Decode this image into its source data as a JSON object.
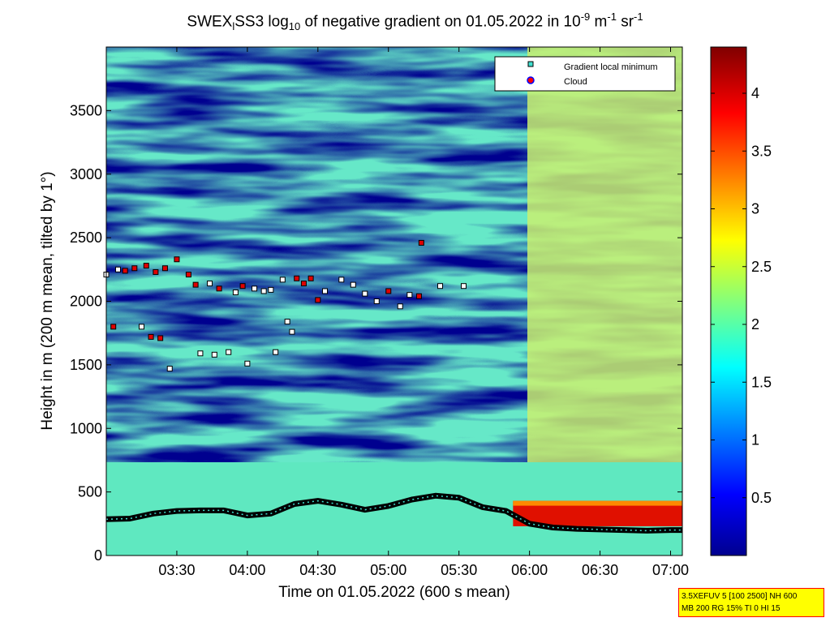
{
  "title": {
    "text_a": "SWEX",
    "sub_a": "l",
    "text_b": "SS3 log",
    "sub_b": "10",
    "text_c": " of negative gradient on 01.05.2022 in 10",
    "sup_c": "-9",
    "text_d": " m",
    "sup_d": "-1",
    "text_e": " sr",
    "sup_e": "-1"
  },
  "settings_lines": [
    "3.5XEFUV 5 [100 2500] NH 600",
    "MB 200 RG 15% TI 0 HI 15"
  ],
  "colors": {
    "colormap": "jet",
    "cloud_marker": "#ff0000",
    "gradient_marker": "#40e0d0",
    "settings_bg": "#ffff00",
    "settings_border": "#ff0000"
  },
  "chart_data": {
    "type": "heatmap",
    "colormap": "jet",
    "xlabel": "Time on 01.05.2022 (600 s mean)",
    "ylabel": "Height in m (200 m mean, tilted by 1°)",
    "xlim": [
      "03:00",
      "07:05"
    ],
    "ylim": [
      0,
      4000
    ],
    "x_ticks": [
      "03:30",
      "04:00",
      "04:30",
      "05:00",
      "05:30",
      "06:00",
      "06:30",
      "07:00"
    ],
    "y_ticks": [
      0,
      500,
      1000,
      1500,
      2000,
      2500,
      3000,
      3500
    ],
    "colorbar": {
      "range": [
        0,
        4.4
      ],
      "ticks": [
        0.5,
        1,
        1.5,
        2,
        2.5,
        3,
        3.5,
        4
      ]
    },
    "legend": {
      "position": "top-right",
      "entries": [
        {
          "label": "Gradient local minimum",
          "marker": "square",
          "color": "#40e0d0"
        },
        {
          "label": "Cloud",
          "marker": "circle",
          "color": "#ff0000"
        }
      ]
    },
    "gradient_minimum_line": {
      "x": [
        "03:00",
        "03:10",
        "03:20",
        "03:30",
        "03:40",
        "03:50",
        "04:00",
        "04:10",
        "04:20",
        "04:30",
        "04:40",
        "04:50",
        "05:00",
        "05:10",
        "05:20",
        "05:30",
        "05:40",
        "05:50",
        "06:00",
        "06:10",
        "06:20",
        "06:30",
        "06:40",
        "06:50",
        "07:00",
        "07:05"
      ],
      "y": [
        285,
        290,
        330,
        350,
        355,
        355,
        315,
        330,
        405,
        430,
        400,
        360,
        390,
        440,
        470,
        455,
        380,
        350,
        250,
        220,
        210,
        205,
        200,
        195,
        200,
        200
      ]
    },
    "cloud_region": {
      "x_start": "05:53",
      "x_end": "07:05",
      "y_bottom": 230,
      "y_top": 430
    },
    "scatter_points": [
      {
        "t": "03:00",
        "y": 2210,
        "cloud": false
      },
      {
        "t": "03:03",
        "y": 1800,
        "cloud": true
      },
      {
        "t": "03:05",
        "y": 2250,
        "cloud": false
      },
      {
        "t": "03:08",
        "y": 2240,
        "cloud": true
      },
      {
        "t": "03:12",
        "y": 2260,
        "cloud": true
      },
      {
        "t": "03:15",
        "y": 1800,
        "cloud": false
      },
      {
        "t": "03:17",
        "y": 2280,
        "cloud": true
      },
      {
        "t": "03:19",
        "y": 1720,
        "cloud": true
      },
      {
        "t": "03:21",
        "y": 2230,
        "cloud": true
      },
      {
        "t": "03:23",
        "y": 1710,
        "cloud": true
      },
      {
        "t": "03:25",
        "y": 2260,
        "cloud": true
      },
      {
        "t": "03:27",
        "y": 1470,
        "cloud": false
      },
      {
        "t": "03:30",
        "y": 2330,
        "cloud": true
      },
      {
        "t": "03:35",
        "y": 2210,
        "cloud": true
      },
      {
        "t": "03:38",
        "y": 2130,
        "cloud": true
      },
      {
        "t": "03:40",
        "y": 1590,
        "cloud": false
      },
      {
        "t": "03:44",
        "y": 2140,
        "cloud": false
      },
      {
        "t": "03:46",
        "y": 1580,
        "cloud": false
      },
      {
        "t": "03:48",
        "y": 2100,
        "cloud": true
      },
      {
        "t": "03:52",
        "y": 1600,
        "cloud": false
      },
      {
        "t": "03:55",
        "y": 2070,
        "cloud": false
      },
      {
        "t": "03:58",
        "y": 2120,
        "cloud": true
      },
      {
        "t": "04:00",
        "y": 1510,
        "cloud": false
      },
      {
        "t": "04:03",
        "y": 2100,
        "cloud": false
      },
      {
        "t": "04:07",
        "y": 2080,
        "cloud": false
      },
      {
        "t": "04:10",
        "y": 2090,
        "cloud": false
      },
      {
        "t": "04:12",
        "y": 1600,
        "cloud": false
      },
      {
        "t": "04:15",
        "y": 2170,
        "cloud": false
      },
      {
        "t": "04:17",
        "y": 1840,
        "cloud": false
      },
      {
        "t": "04:19",
        "y": 1760,
        "cloud": false
      },
      {
        "t": "04:21",
        "y": 2180,
        "cloud": true
      },
      {
        "t": "04:24",
        "y": 2140,
        "cloud": true
      },
      {
        "t": "04:27",
        "y": 2180,
        "cloud": true
      },
      {
        "t": "04:30",
        "y": 2010,
        "cloud": true
      },
      {
        "t": "04:33",
        "y": 2080,
        "cloud": false
      },
      {
        "t": "04:40",
        "y": 2170,
        "cloud": false
      },
      {
        "t": "04:45",
        "y": 2130,
        "cloud": false
      },
      {
        "t": "04:50",
        "y": 2060,
        "cloud": false
      },
      {
        "t": "04:55",
        "y": 2000,
        "cloud": false
      },
      {
        "t": "05:00",
        "y": 2080,
        "cloud": true
      },
      {
        "t": "05:05",
        "y": 1960,
        "cloud": false
      },
      {
        "t": "05:09",
        "y": 2050,
        "cloud": false
      },
      {
        "t": "05:13",
        "y": 2040,
        "cloud": true
      },
      {
        "t": "05:14",
        "y": 2460,
        "cloud": true
      },
      {
        "t": "05:22",
        "y": 2120,
        "cloud": false
      },
      {
        "t": "05:32",
        "y": 2120,
        "cloud": false
      }
    ]
  }
}
